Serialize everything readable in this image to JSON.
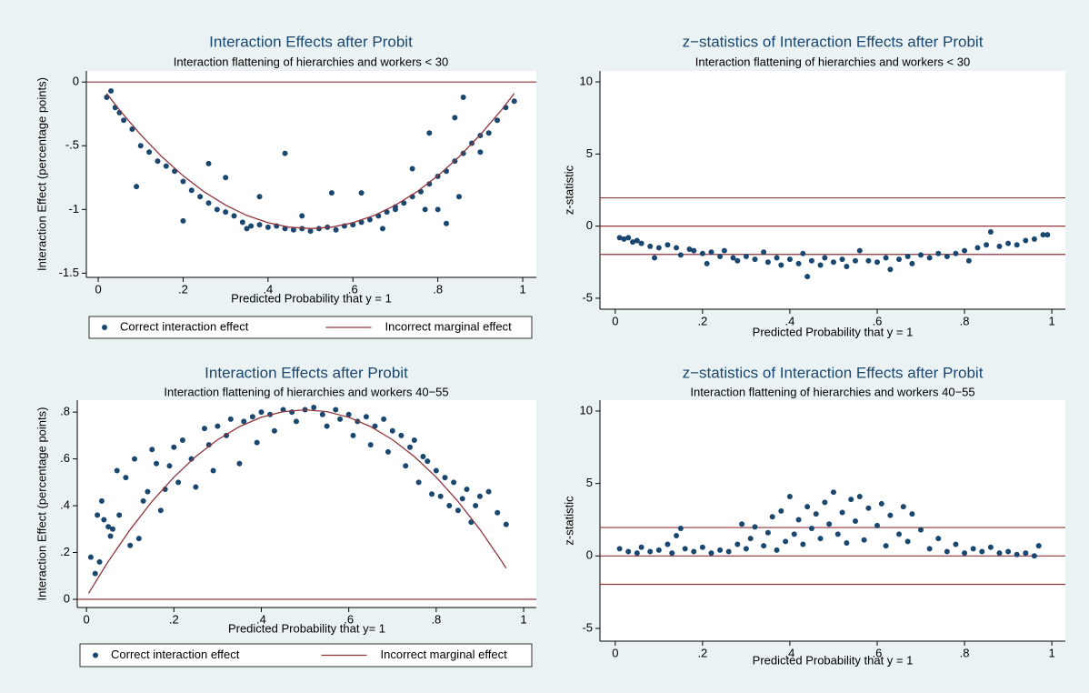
{
  "chart_data": [
    {
      "type": "scatter",
      "title": "Interaction Effects after Probit",
      "subtitle": "Interaction flattening of hierarchies and workers < 30",
      "xlabel": "Predicted Probability that y = 1",
      "ylabel": "Interaction Effect (percentage points)",
      "xlim": [
        -0.028,
        1.032
      ],
      "ylim": [
        -1.533,
        0.087
      ],
      "xticks": [
        0,
        {
          "value": 0.2,
          "label": ".2"
        },
        {
          "value": 0.4,
          "label": ".4"
        },
        {
          "value": 0.6,
          "label": ".6"
        },
        {
          "value": 0.8,
          "label": ".8"
        },
        1
      ],
      "yticks": [
        0,
        {
          "value": -0.5,
          "label": "-.5"
        },
        -1,
        {
          "value": -1.5,
          "label": "-1.5"
        }
      ],
      "hlines": [
        0
      ],
      "hline_color": "#90353b",
      "legend": "bottom",
      "series": [
        {
          "name": "Correct interaction effect",
          "type": "scatter",
          "color": "#1a476f",
          "x": [
            0.02,
            0.03,
            0.04,
            0.05,
            0.06,
            0.08,
            0.1,
            0.12,
            0.14,
            0.16,
            0.18,
            0.2,
            0.22,
            0.24,
            0.26,
            0.28,
            0.3,
            0.32,
            0.34,
            0.36,
            0.38,
            0.4,
            0.42,
            0.44,
            0.46,
            0.48,
            0.5,
            0.52,
            0.54,
            0.56,
            0.58,
            0.6,
            0.62,
            0.64,
            0.66,
            0.68,
            0.7,
            0.72,
            0.74,
            0.76,
            0.78,
            0.8,
            0.82,
            0.84,
            0.86,
            0.88,
            0.9,
            0.92,
            0.94,
            0.96,
            0.98,
            0.09,
            0.26,
            0.44,
            0.2,
            0.86,
            0.84,
            0.9,
            0.74,
            0.3,
            0.55,
            0.82,
            0.38,
            0.48,
            0.62,
            0.67,
            0.35,
            0.7,
            0.8,
            0.77,
            0.78,
            0.85
          ],
          "values": [
            -0.12,
            -0.07,
            -0.2,
            -0.24,
            -0.3,
            -0.37,
            -0.5,
            -0.55,
            -0.62,
            -0.66,
            -0.7,
            -0.78,
            -0.85,
            -0.9,
            -0.95,
            -1.0,
            -1.02,
            -1.05,
            -1.1,
            -1.13,
            -1.12,
            -1.14,
            -1.13,
            -1.15,
            -1.16,
            -1.15,
            -1.17,
            -1.15,
            -1.14,
            -1.16,
            -1.13,
            -1.12,
            -1.1,
            -1.08,
            -1.05,
            -1.02,
            -0.98,
            -0.95,
            -0.9,
            -0.86,
            -0.8,
            -0.74,
            -0.7,
            -0.62,
            -0.56,
            -0.48,
            -0.42,
            -0.4,
            -0.3,
            -0.2,
            -0.15,
            -0.82,
            -0.64,
            -0.56,
            -1.09,
            -0.12,
            -0.28,
            -0.55,
            -0.68,
            -0.75,
            -0.87,
            -1.11,
            -0.9,
            -1.05,
            -0.87,
            -1.15,
            -1.15,
            -1.0,
            -1.0,
            -1.0,
            -0.4,
            -0.9
          ]
        },
        {
          "name": "Incorrect marginal effect",
          "type": "line",
          "color": "#90353b",
          "x": [
            0.02,
            0.05,
            0.1,
            0.15,
            0.2,
            0.25,
            0.3,
            0.35,
            0.4,
            0.45,
            0.5,
            0.55,
            0.6,
            0.65,
            0.7,
            0.75,
            0.8,
            0.85,
            0.9,
            0.95,
            0.98
          ],
          "values": [
            -0.09,
            -0.219,
            -0.414,
            -0.587,
            -0.736,
            -0.863,
            -0.966,
            -1.047,
            -1.104,
            -1.139,
            -1.15,
            -1.139,
            -1.104,
            -1.047,
            -0.966,
            -0.863,
            -0.736,
            -0.587,
            -0.414,
            -0.219,
            -0.09
          ]
        }
      ]
    },
    {
      "type": "scatter",
      "title": "z−statistics of Interaction Effects after Probit",
      "subtitle": "Interaction flattening of hierarchies and workers < 30",
      "xlabel": "Predicted Probability that y = 1",
      "ylabel": "z-statistic",
      "xlim": [
        -0.035,
        1.031
      ],
      "ylim": [
        -5.76,
        10.76
      ],
      "xticks": [
        0,
        {
          "value": 0.2,
          "label": ".2"
        },
        {
          "value": 0.4,
          "label": ".4"
        },
        {
          "value": 0.6,
          "label": ".6"
        },
        {
          "value": 0.8,
          "label": ".8"
        },
        1
      ],
      "yticks": [
        10,
        5,
        0,
        -5
      ],
      "hlines": [
        1.96,
        0,
        -1.96
      ],
      "hline_color": "#90353b",
      "series": [
        {
          "type": "scatter",
          "color": "#1a476f",
          "x": [
            0.01,
            0.02,
            0.03,
            0.04,
            0.05,
            0.06,
            0.08,
            0.09,
            0.1,
            0.12,
            0.14,
            0.15,
            0.17,
            0.18,
            0.2,
            0.21,
            0.22,
            0.24,
            0.25,
            0.27,
            0.28,
            0.3,
            0.32,
            0.34,
            0.35,
            0.37,
            0.38,
            0.4,
            0.42,
            0.43,
            0.44,
            0.45,
            0.47,
            0.48,
            0.5,
            0.52,
            0.53,
            0.55,
            0.56,
            0.58,
            0.6,
            0.62,
            0.63,
            0.65,
            0.67,
            0.68,
            0.7,
            0.72,
            0.74,
            0.76,
            0.78,
            0.8,
            0.81,
            0.83,
            0.85,
            0.86,
            0.88,
            0.9,
            0.92,
            0.94,
            0.96,
            0.98,
            0.99
          ],
          "values": [
            -0.8,
            -0.9,
            -0.8,
            -1.1,
            -1.0,
            -1.2,
            -1.4,
            -2.2,
            -1.5,
            -1.3,
            -1.5,
            -2.0,
            -1.6,
            -1.7,
            -1.9,
            -2.6,
            -1.8,
            -2.1,
            -1.7,
            -2.2,
            -2.4,
            -2.1,
            -2.3,
            -1.8,
            -2.5,
            -2.2,
            -2.7,
            -2.3,
            -2.6,
            -1.9,
            -3.5,
            -2.4,
            -2.7,
            -2.2,
            -2.5,
            -2.3,
            -2.8,
            -2.4,
            -1.7,
            -2.4,
            -2.5,
            -2.2,
            -3.0,
            -2.3,
            -2.1,
            -2.6,
            -2.0,
            -2.2,
            -1.9,
            -2.1,
            -1.9,
            -1.7,
            -2.4,
            -1.5,
            -1.3,
            -0.4,
            -1.4,
            -1.2,
            -1.3,
            -1.0,
            -0.9,
            -0.6,
            -0.6
          ]
        }
      ]
    },
    {
      "type": "scatter",
      "title": "Interaction Effects after Probit",
      "subtitle": "Interaction flattening of hierarchies and workers 40−55",
      "xlabel": "Predicted Probability that y= 1",
      "ylabel": "Interaction Effect (percentage points)",
      "xlim": [
        -0.021,
        1.029
      ],
      "ylim": [
        -0.035,
        0.851
      ],
      "xticks": [
        0,
        {
          "value": 0.2,
          "label": ".2"
        },
        {
          "value": 0.4,
          "label": ".4"
        },
        {
          "value": 0.6,
          "label": ".6"
        },
        {
          "value": 0.8,
          "label": ".8"
        },
        1
      ],
      "yticks": [
        {
          "value": 0.8,
          "label": ".8"
        },
        {
          "value": 0.6,
          "label": ".6"
        },
        {
          "value": 0.4,
          "label": ".4"
        },
        {
          "value": 0.2,
          "label": ".2"
        },
        0
      ],
      "hlines": [
        0
      ],
      "hline_color": "#90353b",
      "legend": "bottom",
      "series": [
        {
          "name": "Correct interaction effect",
          "type": "scatter",
          "color": "#1a476f",
          "x": [
            0.01,
            0.02,
            0.025,
            0.03,
            0.035,
            0.04,
            0.05,
            0.055,
            0.06,
            0.07,
            0.075,
            0.09,
            0.1,
            0.11,
            0.12,
            0.13,
            0.14,
            0.15,
            0.16,
            0.17,
            0.18,
            0.19,
            0.2,
            0.21,
            0.22,
            0.24,
            0.25,
            0.27,
            0.28,
            0.29,
            0.3,
            0.32,
            0.33,
            0.35,
            0.36,
            0.38,
            0.39,
            0.4,
            0.42,
            0.43,
            0.45,
            0.47,
            0.48,
            0.5,
            0.52,
            0.54,
            0.55,
            0.57,
            0.58,
            0.6,
            0.61,
            0.62,
            0.64,
            0.65,
            0.66,
            0.68,
            0.69,
            0.7,
            0.72,
            0.73,
            0.74,
            0.75,
            0.76,
            0.77,
            0.78,
            0.79,
            0.8,
            0.81,
            0.82,
            0.83,
            0.84,
            0.85,
            0.86,
            0.87,
            0.88,
            0.89,
            0.9,
            0.92,
            0.94,
            0.96
          ],
          "values": [
            0.18,
            0.11,
            0.36,
            0.16,
            0.42,
            0.34,
            0.31,
            0.27,
            0.3,
            0.55,
            0.36,
            0.52,
            0.23,
            0.6,
            0.26,
            0.42,
            0.46,
            0.64,
            0.58,
            0.38,
            0.47,
            0.57,
            0.65,
            0.5,
            0.68,
            0.6,
            0.48,
            0.73,
            0.66,
            0.55,
            0.74,
            0.7,
            0.77,
            0.58,
            0.76,
            0.78,
            0.67,
            0.8,
            0.79,
            0.72,
            0.81,
            0.8,
            0.76,
            0.81,
            0.82,
            0.79,
            0.74,
            0.81,
            0.77,
            0.79,
            0.7,
            0.76,
            0.78,
            0.66,
            0.74,
            0.77,
            0.63,
            0.72,
            0.7,
            0.57,
            0.65,
            0.68,
            0.5,
            0.61,
            0.59,
            0.45,
            0.55,
            0.44,
            0.52,
            0.4,
            0.5,
            0.38,
            0.43,
            0.47,
            0.33,
            0.4,
            0.44,
            0.46,
            0.37,
            0.32
          ]
        },
        {
          "name": "Incorrect marginal effect",
          "type": "line",
          "color": "#90353b",
          "x": [
            0.005,
            0.05,
            0.1,
            0.15,
            0.2,
            0.25,
            0.3,
            0.35,
            0.4,
            0.45,
            0.5,
            0.55,
            0.6,
            0.65,
            0.7,
            0.75,
            0.8,
            0.85,
            0.9,
            0.95,
            0.96
          ],
          "values": [
            0.026,
            0.162,
            0.298,
            0.418,
            0.522,
            0.61,
            0.682,
            0.738,
            0.778,
            0.802,
            0.81,
            0.802,
            0.778,
            0.738,
            0.682,
            0.61,
            0.522,
            0.418,
            0.298,
            0.162,
            0.133
          ]
        }
      ]
    },
    {
      "type": "scatter",
      "title": "z−statistics of Interaction Effects after Probit",
      "subtitle": "Interaction flattening of hierarchies and workers 40−55",
      "xlabel": "Predicted Probability that y = 1",
      "ylabel": "z-statistic",
      "xlim": [
        -0.035,
        1.031
      ],
      "ylim": [
        -5.88,
        10.75
      ],
      "xticks": [
        0,
        {
          "value": 0.2,
          "label": ".2"
        },
        {
          "value": 0.4,
          "label": ".4"
        },
        {
          "value": 0.6,
          "label": ".6"
        },
        {
          "value": 0.8,
          "label": ".8"
        },
        1
      ],
      "yticks": [
        10,
        5,
        0,
        -5
      ],
      "hlines": [
        1.96,
        0,
        -1.96
      ],
      "hline_color": "#90353b",
      "series": [
        {
          "type": "scatter",
          "color": "#1a476f",
          "x": [
            0.01,
            0.03,
            0.05,
            0.06,
            0.08,
            0.1,
            0.12,
            0.13,
            0.14,
            0.15,
            0.16,
            0.18,
            0.2,
            0.22,
            0.24,
            0.26,
            0.28,
            0.29,
            0.3,
            0.31,
            0.32,
            0.34,
            0.35,
            0.36,
            0.37,
            0.38,
            0.39,
            0.4,
            0.41,
            0.42,
            0.43,
            0.44,
            0.45,
            0.46,
            0.47,
            0.48,
            0.49,
            0.5,
            0.51,
            0.52,
            0.53,
            0.54,
            0.55,
            0.56,
            0.57,
            0.58,
            0.6,
            0.61,
            0.62,
            0.63,
            0.65,
            0.66,
            0.67,
            0.68,
            0.7,
            0.72,
            0.74,
            0.76,
            0.78,
            0.8,
            0.82,
            0.84,
            0.86,
            0.88,
            0.9,
            0.92,
            0.94,
            0.96,
            0.97
          ],
          "values": [
            0.5,
            0.3,
            0.2,
            0.6,
            0.3,
            0.4,
            0.8,
            0.2,
            1.4,
            1.9,
            0.5,
            0.3,
            0.6,
            0.2,
            0.4,
            0.3,
            0.8,
            2.2,
            0.5,
            1.2,
            2.0,
            0.7,
            1.6,
            2.7,
            0.4,
            3.1,
            1.0,
            4.1,
            1.5,
            2.5,
            0.8,
            3.4,
            1.9,
            2.9,
            1.2,
            3.7,
            2.2,
            4.4,
            1.5,
            3.0,
            0.9,
            3.9,
            2.4,
            4.1,
            1.1,
            3.3,
            2.1,
            3.6,
            0.7,
            2.8,
            1.5,
            3.4,
            1.0,
            2.9,
            1.8,
            0.5,
            1.2,
            0.3,
            0.8,
            0.2,
            0.5,
            0.3,
            0.6,
            0.2,
            0.3,
            0.1,
            0.2,
            0.0,
            0.7
          ]
        }
      ]
    }
  ]
}
